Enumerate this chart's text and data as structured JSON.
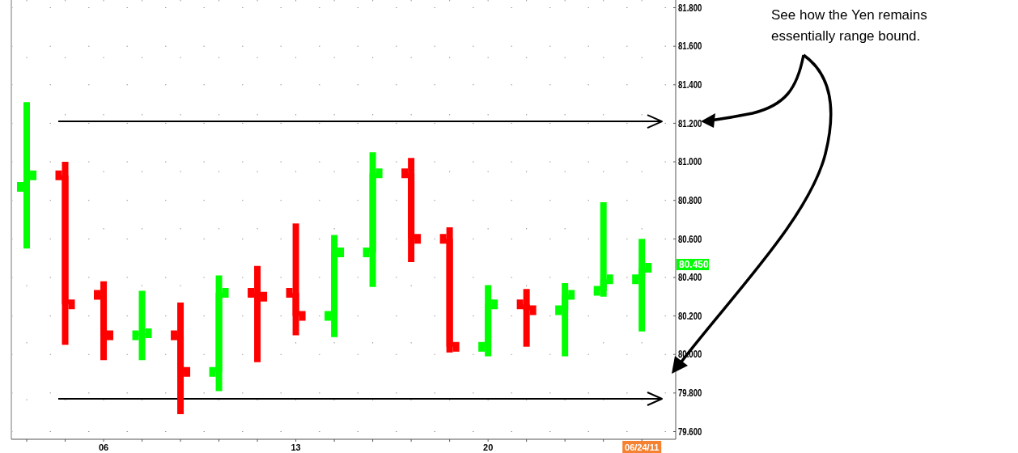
{
  "chart_data": {
    "type": "candlestick",
    "categories": [
      null,
      null,
      "06",
      null,
      null,
      null,
      null,
      "13",
      null,
      null,
      null,
      null,
      "20",
      null,
      null,
      null,
      "06/24/11"
    ],
    "ohlc": [
      [
        80.87,
        81.31,
        80.55,
        80.93
      ],
      [
        80.93,
        81.0,
        80.05,
        80.26
      ],
      [
        80.31,
        80.38,
        79.97,
        80.1
      ],
      [
        80.1,
        80.33,
        79.97,
        80.11
      ],
      [
        80.1,
        80.27,
        79.69,
        79.91
      ],
      [
        79.91,
        80.41,
        79.81,
        80.32
      ],
      [
        80.32,
        80.46,
        79.96,
        80.3
      ],
      [
        80.32,
        80.68,
        80.1,
        80.2
      ],
      [
        80.2,
        80.62,
        80.09,
        80.53
      ],
      [
        80.53,
        81.05,
        80.35,
        80.94
      ],
      [
        80.94,
        81.02,
        80.48,
        80.6
      ],
      [
        80.6,
        80.66,
        80.01,
        80.04
      ],
      [
        80.04,
        80.36,
        79.99,
        80.26
      ],
      [
        80.26,
        80.34,
        80.04,
        80.23
      ],
      [
        80.23,
        80.37,
        79.99,
        80.31
      ],
      [
        80.33,
        80.79,
        80.3,
        80.39
      ],
      [
        80.39,
        80.6,
        80.12,
        80.45
      ]
    ],
    "colors": [
      "#00ff00",
      "#ff0000",
      "#ff0000",
      "#00ff00",
      "#ff0000",
      "#00ff00",
      "#ff0000",
      "#ff0000",
      "#00ff00",
      "#00ff00",
      "#ff0000",
      "#ff0000",
      "#00ff00",
      "#ff0000",
      "#00ff00",
      "#00ff00",
      "#00ff00"
    ],
    "ylim": [
      79.56,
      81.84
    ],
    "yticks": [
      {
        "value": 79.6,
        "label": "79.600"
      },
      {
        "value": 79.8,
        "label": "79.800"
      },
      {
        "value": 80.0,
        "label": "80.000"
      },
      {
        "value": 80.2,
        "label": "80.200"
      },
      {
        "value": 80.4,
        "label": "80.400"
      },
      {
        "value": 80.6,
        "label": "80.600"
      },
      {
        "value": 80.8,
        "label": "80.800"
      },
      {
        "value": 81.0,
        "label": "81.000"
      },
      {
        "value": 81.2,
        "label": "81.200"
      },
      {
        "value": 81.4,
        "label": "81.400"
      },
      {
        "value": 81.6,
        "label": "81.600"
      },
      {
        "value": 81.8,
        "label": "81.800"
      }
    ],
    "grid": true,
    "ref_lines": [
      {
        "axis": "y",
        "value": 81.21,
        "color": "#000000"
      },
      {
        "axis": "y",
        "value": 79.77,
        "color": "#000000"
      }
    ],
    "annotations": [
      "See how the Yen remains essentially range bound.",
      "80.450"
    ]
  }
}
